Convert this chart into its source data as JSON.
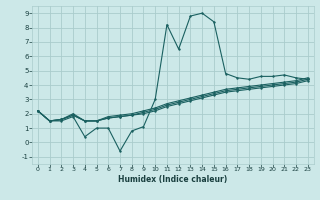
{
  "xlabel": "Humidex (Indice chaleur)",
  "ylabel": "",
  "xlim": [
    -0.5,
    23.5
  ],
  "ylim": [
    -1.5,
    9.5
  ],
  "xticks": [
    0,
    1,
    2,
    3,
    4,
    5,
    6,
    7,
    8,
    9,
    10,
    11,
    12,
    13,
    14,
    15,
    16,
    17,
    18,
    19,
    20,
    21,
    22,
    23
  ],
  "yticks": [
    -1,
    0,
    1,
    2,
    3,
    4,
    5,
    6,
    7,
    8,
    9
  ],
  "bg_color": "#cce8e8",
  "grid_color": "#aacccc",
  "line_color": "#1a6060",
  "series": {
    "line1_x": [
      0,
      1,
      2,
      3,
      4,
      5,
      6,
      7,
      8,
      9,
      10,
      11,
      12,
      13,
      14,
      15,
      16,
      17,
      18,
      19,
      20,
      21,
      22,
      23
    ],
    "line1_y": [
      2.2,
      1.5,
      1.5,
      1.8,
      0.4,
      1.0,
      1.0,
      -0.6,
      0.8,
      1.1,
      3.0,
      8.2,
      6.5,
      8.8,
      9.0,
      8.4,
      4.8,
      4.5,
      4.4,
      4.6,
      4.6,
      4.7,
      4.5,
      4.4
    ],
    "line2_x": [
      0,
      1,
      2,
      3,
      4,
      5,
      6,
      7,
      8,
      9,
      10,
      11,
      12,
      13,
      14,
      15,
      16,
      17,
      18,
      19,
      20,
      21,
      22,
      23
    ],
    "line2_y": [
      2.2,
      1.5,
      1.6,
      1.9,
      1.5,
      1.5,
      1.7,
      1.8,
      1.9,
      2.0,
      2.2,
      2.5,
      2.7,
      2.9,
      3.1,
      3.3,
      3.5,
      3.6,
      3.7,
      3.8,
      3.9,
      4.0,
      4.1,
      4.3
    ],
    "line3_x": [
      0,
      1,
      2,
      3,
      4,
      5,
      6,
      7,
      8,
      9,
      10,
      11,
      12,
      13,
      14,
      15,
      16,
      17,
      18,
      19,
      20,
      21,
      22,
      23
    ],
    "line3_y": [
      2.2,
      1.5,
      1.6,
      1.9,
      1.5,
      1.5,
      1.7,
      1.8,
      1.9,
      2.1,
      2.3,
      2.6,
      2.8,
      3.0,
      3.2,
      3.4,
      3.6,
      3.7,
      3.8,
      3.9,
      4.0,
      4.1,
      4.2,
      4.4
    ],
    "line4_x": [
      0,
      1,
      2,
      3,
      4,
      5,
      6,
      7,
      8,
      9,
      10,
      11,
      12,
      13,
      14,
      15,
      16,
      17,
      18,
      19,
      20,
      21,
      22,
      23
    ],
    "line4_y": [
      2.2,
      1.5,
      1.6,
      2.0,
      1.5,
      1.5,
      1.8,
      1.9,
      2.0,
      2.2,
      2.4,
      2.7,
      2.9,
      3.1,
      3.3,
      3.5,
      3.7,
      3.8,
      3.9,
      4.0,
      4.1,
      4.2,
      4.3,
      4.5
    ]
  }
}
